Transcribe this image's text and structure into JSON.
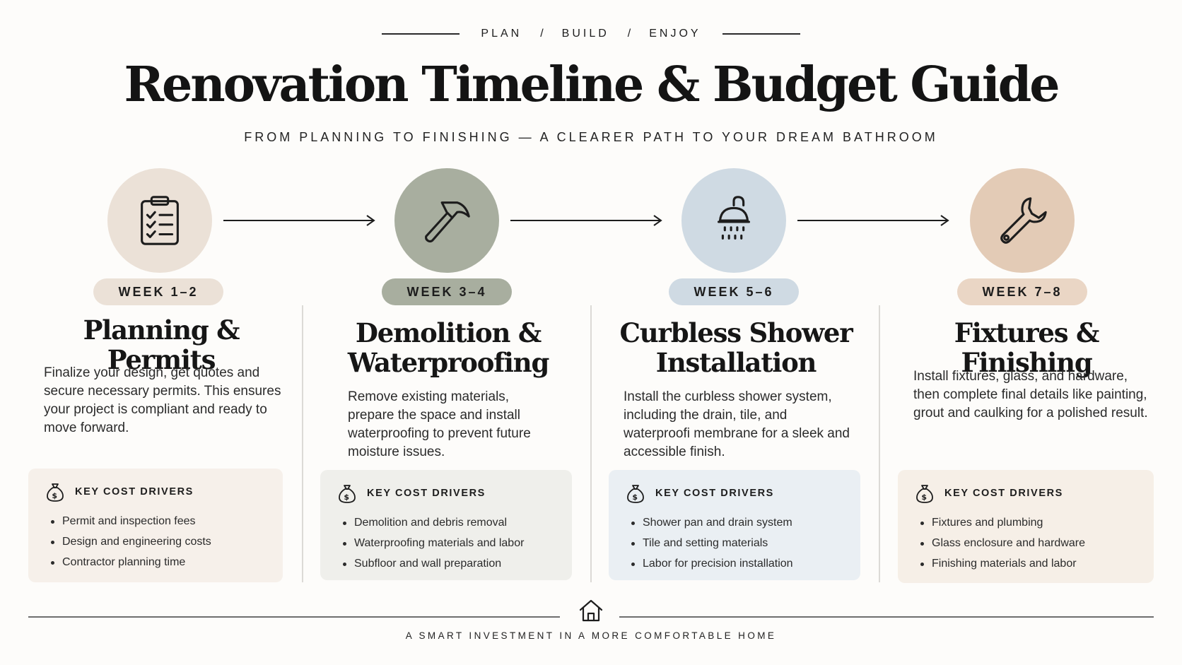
{
  "header": {
    "kicker": [
      "PLAN",
      "BUILD",
      "ENJOY"
    ],
    "title": "Renovation Timeline & Budget Guide",
    "subtitle": "FROM PLANNING TO FINISHING — A CLEARER PATH TO YOUR DREAM BATHROOM"
  },
  "stages": [
    {
      "icon": "clipboard-checklist-icon",
      "week": "WEEK 1–2",
      "title": "Planning & Permits",
      "description": "Finalize your design, get quotes and secure necessary permits. This ensures your project is compliant and ready to move forward.",
      "cost_title": "KEY COST DRIVERS",
      "cost_items": [
        "Permit and inspection fees",
        "Design and engineering costs",
        "Contractor planning time"
      ],
      "colors": {
        "circle": "#ebe1d7",
        "pill": "#ebe1d7",
        "box": "#f6f0ea"
      }
    },
    {
      "icon": "hammer-icon",
      "week": "WEEK 3–4",
      "title": "Demolition & Waterproofing",
      "description": "Remove existing materials, prepare the space and install waterproofing to prevent future moisture issues.",
      "cost_title": "KEY COST DRIVERS",
      "cost_items": [
        "Demolition and debris removal",
        "Waterproofing materials and labor",
        "Subfloor and wall preparation"
      ],
      "colors": {
        "circle": "#a8ae9f",
        "pill": "#a8ae9f",
        "box": "#efefeb"
      }
    },
    {
      "icon": "shower-head-icon",
      "week": "WEEK 5–6",
      "title": "Curbless Shower Installation",
      "description": "Install the curbless shower system, including the drain, tile, and waterproofi membrane for a sleek and accessible finish.",
      "cost_title": "KEY COST DRIVERS",
      "cost_items": [
        "Shower pan and drain system",
        "Tile and setting materials",
        "Labor for precision installation"
      ],
      "colors": {
        "circle": "#cfdae3",
        "pill": "#cfdae3",
        "box": "#eaeff3"
      }
    },
    {
      "icon": "wrench-icon",
      "week": "WEEK 7–8",
      "title": "Fixtures & Finishing",
      "description": "Install fixtures, glass, and hardware, then complete final details like painting, grout and caulking for a polished result.",
      "cost_title": "KEY COST DRIVERS",
      "cost_items": [
        "Fixtures and plumbing",
        "Glass enclosure and hardware",
        "Finishing materials and labor"
      ],
      "colors": {
        "circle": "#e3cbb6",
        "pill": "#ead6c5",
        "box": "#f6efe7"
      }
    }
  ],
  "footer": {
    "icon": "house-icon",
    "tagline": "A SMART INVESTMENT IN A MORE COMFORTABLE HOME"
  }
}
